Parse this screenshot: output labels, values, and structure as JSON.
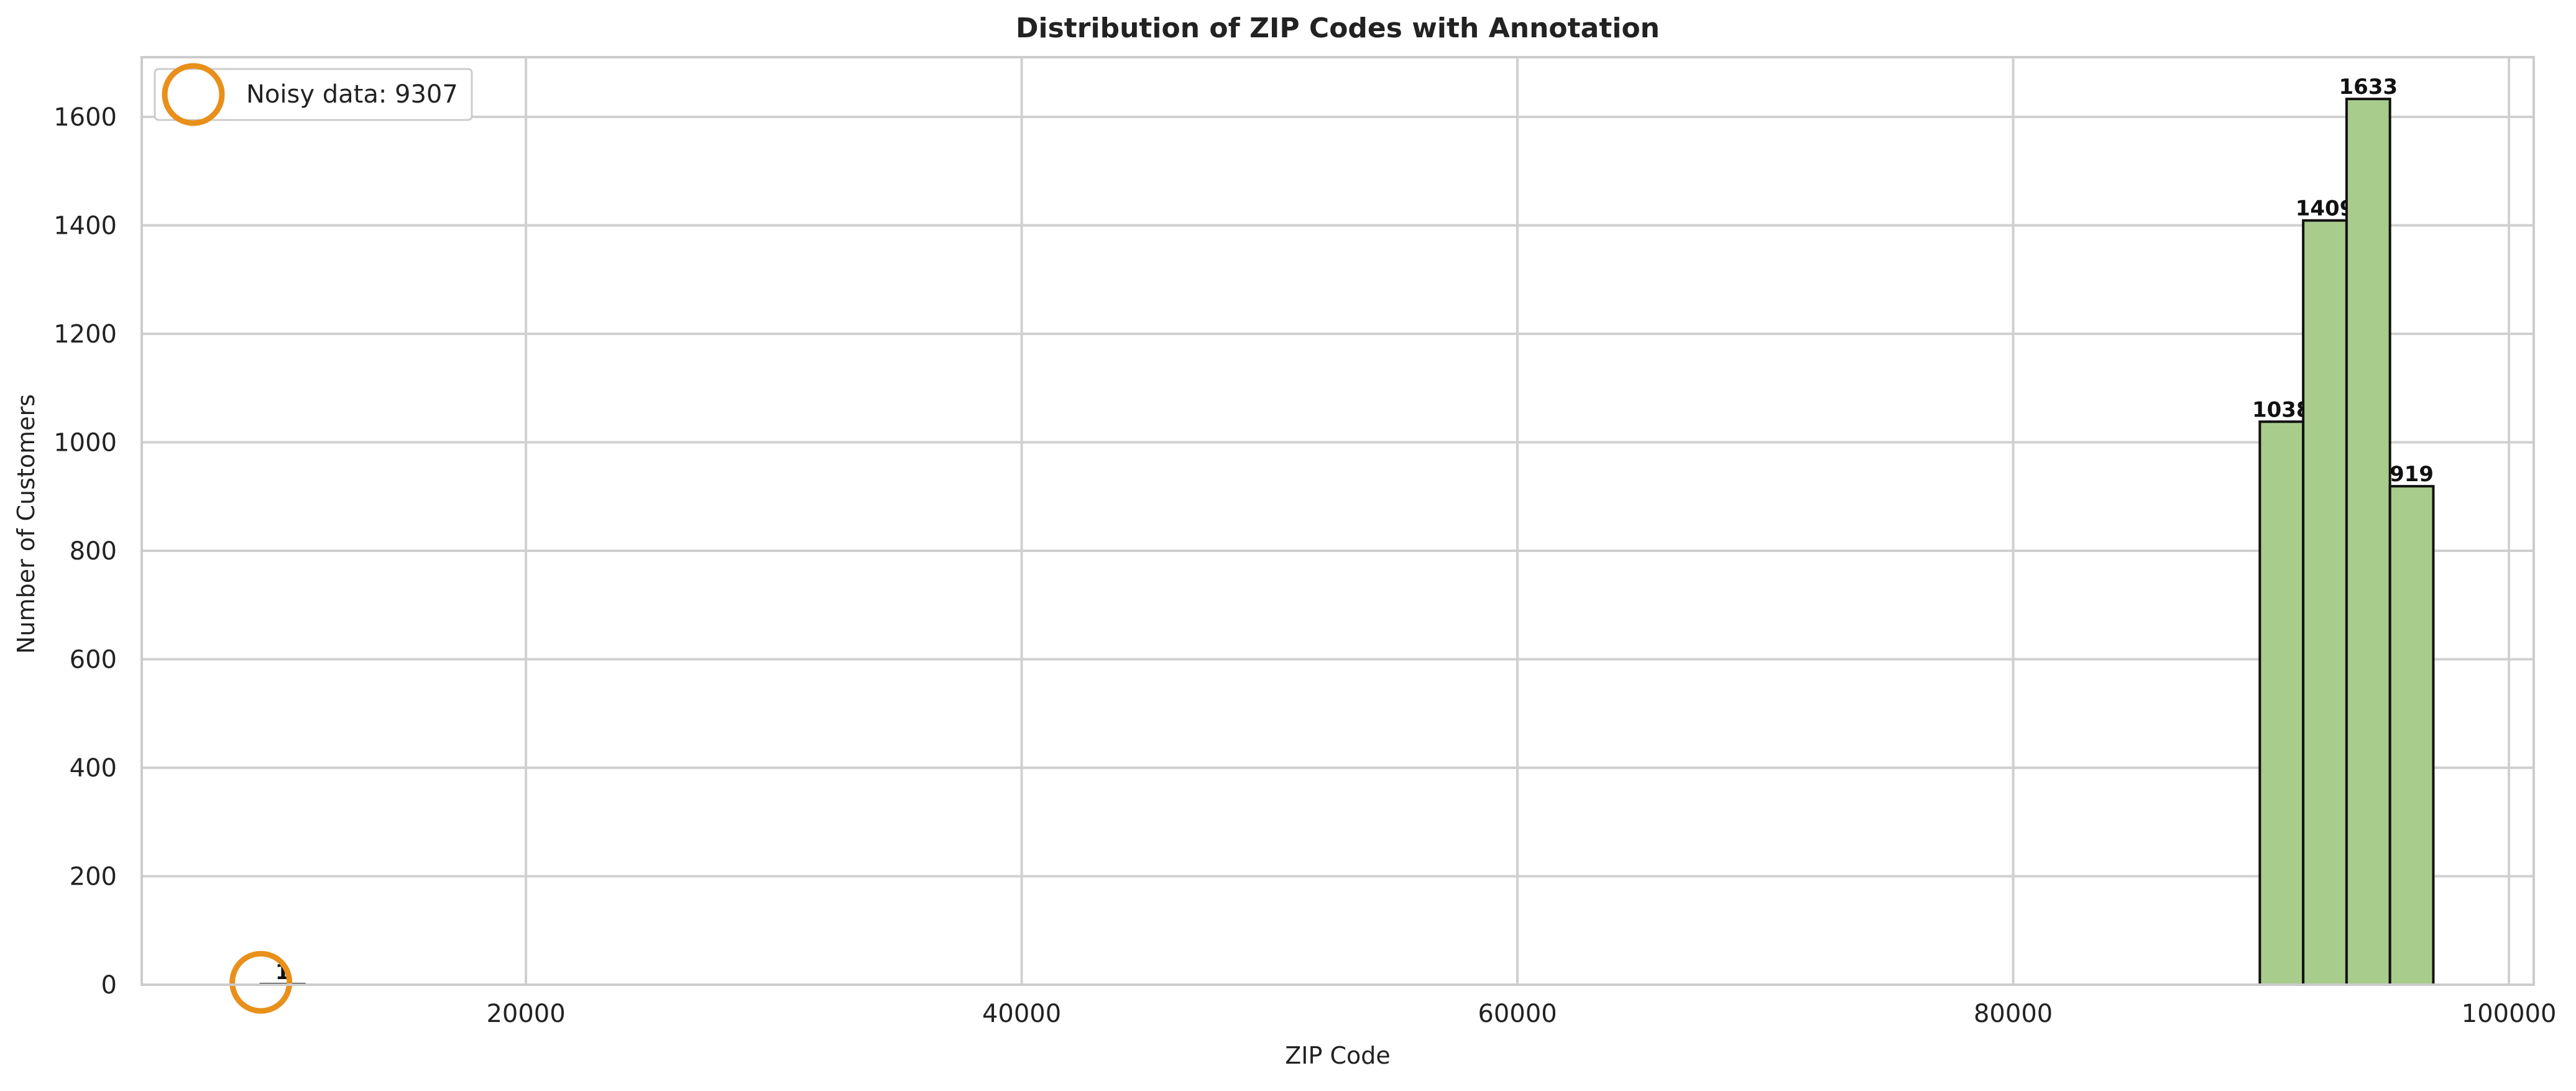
{
  "chart_data": {
    "type": "bar",
    "title": "Distribution of ZIP Codes with Annotation",
    "xlabel": "ZIP Code",
    "ylabel": "Number of Customers",
    "xlim": [
      4500,
      101000
    ],
    "ylim": [
      0,
      1710
    ],
    "xticks": [
      20000,
      40000,
      60000,
      80000,
      100000
    ],
    "yticks": [
      0,
      200,
      400,
      600,
      800,
      1000,
      1200,
      1400,
      1600
    ],
    "grid": true,
    "bars": [
      {
        "x0": 9307,
        "x1": 11060,
        "value": 1,
        "label": "1"
      },
      {
        "x0": 89950,
        "x1": 91700,
        "value": 1038,
        "label": "1038"
      },
      {
        "x0": 91700,
        "x1": 93450,
        "value": 1409,
        "label": "1409"
      },
      {
        "x0": 93450,
        "x1": 95200,
        "value": 1633,
        "label": "1633"
      },
      {
        "x0": 95200,
        "x1": 96950,
        "value": 919,
        "label": "919"
      }
    ],
    "annotation": {
      "x": 9307,
      "y": 1,
      "label": "Noisy data: 9307"
    },
    "legend": {
      "position": "top-left",
      "entries": [
        "Noisy data: 9307"
      ]
    },
    "colors": {
      "bar_fill": "#a8cc8c",
      "bar_edge": "#111111",
      "annotation": "#e8901a",
      "grid": "#d0d0d0",
      "axis_frame": "#cccccc",
      "text": "#222222"
    }
  }
}
